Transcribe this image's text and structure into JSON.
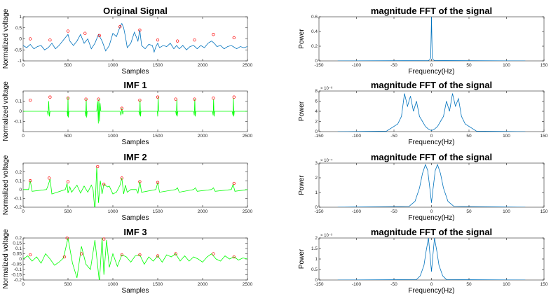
{
  "colors": {
    "signal": "#0072BD",
    "imf": "#00FF00",
    "peak": "#FF0000",
    "axis": "#262626"
  },
  "chart_data": [
    {
      "type": "line",
      "title": "Original Signal",
      "xlabel": "Samples",
      "ylabel": "Normalized voltage",
      "xlim": [
        0,
        2500
      ],
      "ylim": [
        -1,
        1
      ],
      "xticks": [
        "0",
        "500",
        "1000",
        "1500",
        "2000",
        "2500"
      ],
      "yticks": [
        "-1",
        "-0.5",
        "0",
        "0.5",
        "1"
      ],
      "series": [
        {
          "color": "#0072BD",
          "x": [
            0,
            40,
            80,
            120,
            160,
            200,
            240,
            280,
            320,
            360,
            400,
            440,
            480,
            500,
            520,
            560,
            600,
            640,
            680,
            720,
            760,
            800,
            840,
            880,
            920,
            960,
            1000,
            1040,
            1080,
            1100,
            1120,
            1140,
            1160,
            1200,
            1240,
            1280,
            1300,
            1320,
            1360,
            1400,
            1440,
            1460,
            1480,
            1500,
            1520,
            1560,
            1600,
            1640,
            1680,
            1710,
            1740,
            1780,
            1820,
            1860,
            1900,
            1940,
            1980,
            2020,
            2060,
            2100,
            2130,
            2160,
            2200,
            2240,
            2280,
            2320,
            2340,
            2380,
            2420,
            2460,
            2500
          ],
          "y": [
            -0.3,
            -0.4,
            -0.25,
            -0.45,
            -0.35,
            -0.3,
            -0.5,
            -0.4,
            -0.2,
            -0.45,
            -0.3,
            -0.1,
            0.1,
            0.2,
            -0.1,
            -0.3,
            -0.1,
            0.2,
            -0.2,
            0.0,
            -0.45,
            -0.2,
            0.2,
            -0.1,
            -0.55,
            -0.3,
            0.25,
            0.1,
            0.55,
            0.7,
            0.5,
            0.1,
            -0.4,
            -0.2,
            0.3,
            -0.1,
            0.4,
            -0.3,
            -0.45,
            -0.25,
            -0.3,
            -0.6,
            -0.35,
            -0.2,
            -0.4,
            -0.3,
            -0.35,
            -0.2,
            -0.45,
            -0.3,
            -0.45,
            -0.3,
            -0.5,
            -0.35,
            -0.3,
            -0.45,
            -0.3,
            -0.4,
            -0.2,
            -0.1,
            -0.2,
            -0.35,
            -0.3,
            -0.45,
            -0.35,
            -0.3,
            -0.35,
            -0.45,
            -0.35,
            -0.4,
            -0.35
          ]
        }
      ],
      "peaks": {
        "x": [
          80,
          300,
          500,
          690,
          850,
          1080,
          1300,
          1500,
          1720,
          1910,
          2120,
          2350
        ],
        "y": [
          0.0,
          -0.05,
          0.35,
          0.25,
          0.15,
          0.55,
          0.4,
          -0.05,
          -0.1,
          -0.05,
          0.2,
          0.05
        ]
      }
    },
    {
      "type": "line",
      "title": "IMF 1",
      "xlabel": "Samples",
      "ylabel": "Normalized voltage",
      "xlim": [
        0,
        2500
      ],
      "ylim": [
        -0.2,
        0.2
      ],
      "xticks": [
        "0",
        "500",
        "1000",
        "1500",
        "2000",
        "2500"
      ],
      "yticks": [
        "-0.1",
        "0",
        "0.1"
      ],
      "series": [
        {
          "color": "#00FF00",
          "x": [
            0,
            270,
            278,
            285,
            292,
            300,
            490,
            496,
            500,
            504,
            510,
            690,
            698,
            703,
            708,
            714,
            820,
            830,
            838,
            844,
            850,
            858,
            866,
            1080,
            1090,
            1100,
            1110,
            1118,
            1290,
            1298,
            1303,
            1308,
            1314,
            1495,
            1500,
            1504,
            1510,
            1700,
            1708,
            1713,
            1718,
            1724,
            1900,
            1908,
            1913,
            1918,
            1924,
            2110,
            2118,
            2123,
            2128,
            2134,
            2330,
            2338,
            2343,
            2348,
            2354,
            2500
          ],
          "y": [
            0,
            0,
            -0.04,
            0.1,
            -0.05,
            0,
            0,
            -0.05,
            0.14,
            -0.06,
            0,
            0,
            -0.05,
            0.12,
            -0.06,
            0,
            0,
            0.1,
            -0.12,
            0.12,
            -0.1,
            0.08,
            0,
            0,
            -0.04,
            0.03,
            -0.03,
            0,
            0,
            -0.04,
            0.11,
            -0.05,
            0,
            0,
            -0.05,
            0.14,
            0,
            0,
            -0.04,
            0.12,
            -0.05,
            0,
            0,
            -0.04,
            0.12,
            -0.05,
            0,
            0,
            -0.04,
            0.12,
            -0.05,
            0,
            0,
            -0.04,
            0.13,
            -0.05,
            0,
            0
          ]
        }
      ],
      "peaks": {
        "x": [
          80,
          300,
          500,
          700,
          840,
          1100,
          1300,
          1500,
          1700,
          1910,
          2120,
          2350
        ],
        "y": [
          0.11,
          0.14,
          0.13,
          0.12,
          0.12,
          0.03,
          0.11,
          0.14,
          0.12,
          0.12,
          0.13,
          0.14
        ]
      }
    },
    {
      "type": "line",
      "title": "IMF 2",
      "xlabel": "Samples",
      "ylabel": "Normalized voltage",
      "xlim": [
        0,
        2500
      ],
      "ylim": [
        -0.2,
        0.3
      ],
      "xticks": [
        "0",
        "500",
        "1000",
        "1500",
        "2000",
        "2500"
      ],
      "yticks": [
        "-0.2",
        "-0.1",
        "0",
        "0.1",
        "0.2"
      ],
      "series": [
        {
          "color": "#00FF00",
          "x": [
            0,
            60,
            80,
            100,
            260,
            280,
            300,
            320,
            470,
            490,
            500,
            520,
            540,
            600,
            640,
            680,
            720,
            760,
            780,
            800,
            820,
            840,
            860,
            880,
            900,
            940,
            960,
            1000,
            1040,
            1080,
            1100,
            1120,
            1140,
            1160,
            1200,
            1260,
            1280,
            1300,
            1320,
            1480,
            1500,
            1520,
            1700,
            1720,
            1740,
            1900,
            1920,
            1940,
            2100,
            2120,
            2140,
            2320,
            2340,
            2360,
            2500
          ],
          "y": [
            0,
            0,
            0.1,
            -0.02,
            0,
            0.05,
            0.12,
            -0.05,
            0,
            0.07,
            -0.04,
            0.03,
            -0.03,
            0.05,
            -0.04,
            0.04,
            -0.03,
            0.05,
            0,
            -0.25,
            0.25,
            -0.15,
            0.1,
            -0.05,
            0.06,
            0.03,
            0.04,
            -0.05,
            -0.03,
            0.05,
            0.13,
            -0.05,
            0.05,
            -0.03,
            0,
            0,
            -0.04,
            0.09,
            -0.03,
            0,
            0.08,
            -0.03,
            0,
            0.02,
            -0.03,
            0,
            0.02,
            -0.02,
            0,
            0.02,
            -0.02,
            0,
            0.06,
            -0.02,
            0
          ]
        }
      ],
      "peaks": {
        "x": [
          80,
          290,
          500,
          830,
          900,
          1100,
          1300,
          1500,
          2350
        ],
        "y": [
          0.1,
          0.13,
          0.09,
          0.26,
          0.06,
          0.13,
          0.09,
          0.08,
          0.07
        ]
      }
    },
    {
      "type": "line",
      "title": "IMF 3",
      "xlabel": "Samples",
      "ylabel": "Normalized voltage",
      "xlim": [
        0,
        2500
      ],
      "ylim": [
        -0.2,
        0.2
      ],
      "xticks": [
        "0",
        "500",
        "1000",
        "1500",
        "2000",
        "2500"
      ],
      "yticks": [
        "-0.2",
        "-0.15",
        "-0.1",
        "-0.05",
        "0",
        "0.05",
        "0.1",
        "0.15",
        "0.2"
      ],
      "series": [
        {
          "color": "#00FF00",
          "x": [
            0,
            50,
            100,
            150,
            200,
            250,
            300,
            350,
            400,
            450,
            500,
            550,
            600,
            650,
            700,
            750,
            800,
            850,
            880,
            900,
            930,
            960,
            1000,
            1050,
            1100,
            1150,
            1200,
            1250,
            1300,
            1350,
            1400,
            1450,
            1500,
            1550,
            1600,
            1650,
            1700,
            1750,
            1800,
            1850,
            1900,
            1950,
            2000,
            2050,
            2100,
            2150,
            2200,
            2250,
            2300,
            2350,
            2400,
            2450,
            2500
          ],
          "y": [
            0,
            0.03,
            -0.02,
            0.02,
            -0.04,
            0.05,
            0,
            -0.06,
            -0.03,
            0.01,
            0.2,
            -0.04,
            -0.18,
            0.12,
            -0.05,
            -0.1,
            0.18,
            -0.22,
            0.2,
            -0.15,
            0.18,
            -0.08,
            0.05,
            -0.07,
            0.04,
            0.02,
            -0.03,
            0.03,
            0.04,
            -0.05,
            0.02,
            -0.02,
            0.03,
            -0.03,
            0.04,
            0.02,
            0.05,
            -0.02,
            0.03,
            -0.02,
            0.02,
            0,
            -0.03,
            0.02,
            0.05,
            0,
            -0.02,
            0.03,
            0,
            0.02,
            -0.01,
            0.01,
            0
          ]
        }
      ],
      "peaks": {
        "x": [
          80,
          460,
          490,
          650,
          900,
          1100,
          1300,
          1500,
          1700,
          2120,
          2350
        ],
        "y": [
          0.04,
          0.02,
          0.2,
          0.05,
          0.19,
          0.04,
          0.04,
          0.03,
          0.05,
          0.05,
          0.02
        ]
      }
    },
    {
      "type": "line",
      "title": "magnitude FFT of the signal",
      "xlabel": "Frequency(Hz)",
      "ylabel": "Power",
      "xlim": [
        -150,
        150
      ],
      "ylim": [
        0,
        0.6
      ],
      "xticks": [
        "-150",
        "-100",
        "-50",
        "0",
        "50",
        "100",
        "150"
      ],
      "yticks": [
        "0",
        "0.2",
        "0.4",
        "0.6"
      ],
      "exponent": "",
      "series": [
        {
          "color": "#0072BD",
          "x": [
            -125,
            -4,
            -2,
            -1,
            0,
            1,
            2,
            4,
            125
          ],
          "y": [
            0,
            0.005,
            0.02,
            0.05,
            0.6,
            0.05,
            0.02,
            0.005,
            0
          ]
        }
      ]
    },
    {
      "type": "line",
      "title": "magnitude FFT of the signal",
      "xlabel": "Frequency(Hz)",
      "ylabel": "Power",
      "xlim": [
        -150,
        150
      ],
      "ylim": [
        0,
        8
      ],
      "xticks": [
        "-150",
        "-100",
        "-50",
        "0",
        "50",
        "100",
        "150"
      ],
      "yticks": [
        "0",
        "2",
        "4",
        "6",
        "8"
      ],
      "exponent": "× 10⁻⁶",
      "series": [
        {
          "color": "#0072BD",
          "x": [
            -125,
            -60,
            -45,
            -40,
            -36,
            -32,
            -28,
            -24,
            -20,
            -16,
            -12,
            -8,
            -4,
            0,
            4,
            8,
            12,
            16,
            20,
            24,
            28,
            32,
            36,
            40,
            45,
            60,
            125
          ],
          "y": [
            0,
            0.1,
            1.5,
            3,
            7.5,
            5,
            7,
            4,
            6,
            3,
            2,
            1,
            0.5,
            0.2,
            0.5,
            1,
            2,
            3,
            6,
            4,
            7.5,
            5,
            6.5,
            3,
            1.5,
            0.1,
            0
          ]
        }
      ]
    },
    {
      "type": "line",
      "title": "magnitude FFT of the signal",
      "xlabel": "Frequency(Hz)",
      "ylabel": "Power",
      "xlim": [
        -150,
        150
      ],
      "ylim": [
        0,
        3
      ],
      "xticks": [
        "-150",
        "-100",
        "-50",
        "0",
        "50",
        "100",
        "150"
      ],
      "yticks": [
        "0",
        "1",
        "2",
        "3"
      ],
      "exponent": "× 10⁻⁴",
      "series": [
        {
          "color": "#0072BD",
          "x": [
            -125,
            -30,
            -22,
            -16,
            -12,
            -8,
            -5,
            -2,
            0,
            2,
            5,
            8,
            12,
            16,
            22,
            30,
            125
          ],
          "y": [
            0,
            0.05,
            0.4,
            1.3,
            2.3,
            2.9,
            2.5,
            1.2,
            0.3,
            1.2,
            2.5,
            2.9,
            2.3,
            1.3,
            0.4,
            0.05,
            0
          ]
        }
      ]
    },
    {
      "type": "line",
      "title": "magnitude FFT of the signal",
      "xlabel": "Frequency(Hz)",
      "ylabel": "Power",
      "xlim": [
        -150,
        150
      ],
      "ylim": [
        0,
        2
      ],
      "xticks": [
        "-150",
        "-100",
        "-50",
        "0",
        "50",
        "100",
        "150"
      ],
      "yticks": [
        "0",
        "0.5",
        "1",
        "1.5",
        "2"
      ],
      "exponent": "× 10⁻³",
      "series": [
        {
          "color": "#0072BD",
          "x": [
            -125,
            -20,
            -15,
            -10,
            -7,
            -4,
            -2,
            0,
            2,
            4,
            7,
            10,
            15,
            20,
            125
          ],
          "y": [
            0,
            0.02,
            0.2,
            0.7,
            1.4,
            2.0,
            1.2,
            0.4,
            1.2,
            2.0,
            1.4,
            0.7,
            0.2,
            0.02,
            0
          ]
        }
      ]
    }
  ]
}
